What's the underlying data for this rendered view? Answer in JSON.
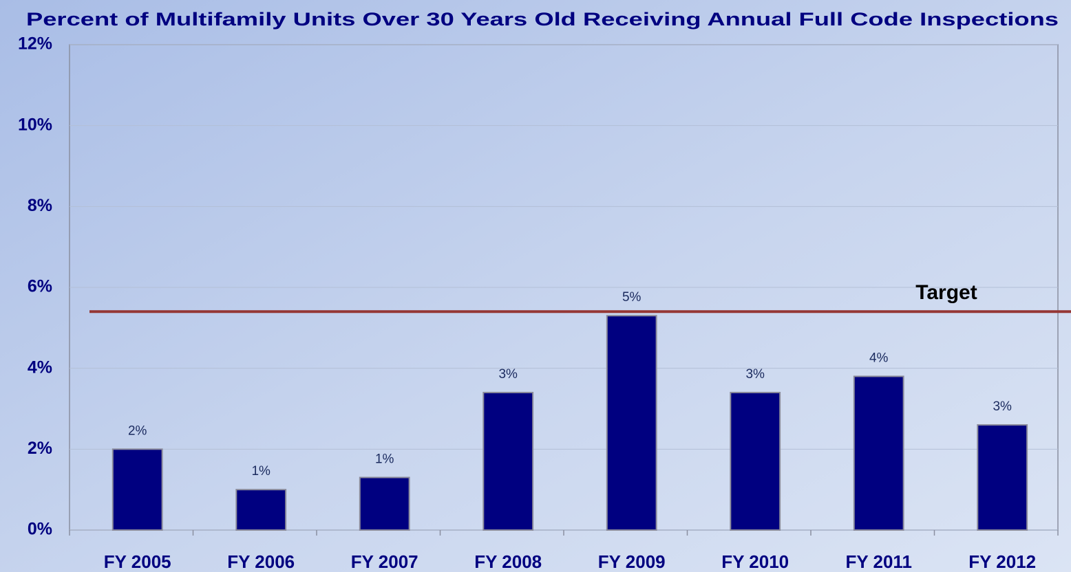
{
  "chart_data": {
    "type": "bar",
    "title": "Percent of Multifamily Units Over 30 Years Old Receiving Annual Full Code Inspections",
    "categories": [
      "FY 2005",
      "FY 2006",
      "FY 2007",
      "FY 2008",
      "FY 2009",
      "FY 2010",
      "FY 2011",
      "FY 2012"
    ],
    "values": [
      2.0,
      1.0,
      1.3,
      3.4,
      5.3,
      3.4,
      3.8,
      2.6
    ],
    "value_labels": [
      "2%",
      "1%",
      "1%",
      "3%",
      "5%",
      "3%",
      "4%",
      "3%"
    ],
    "color": "#000080",
    "ylim": [
      0,
      12
    ],
    "yticks": [
      {
        "value": 0,
        "label": "0%"
      },
      {
        "value": 2,
        "label": "2%"
      },
      {
        "value": 4,
        "label": "4%"
      },
      {
        "value": 6,
        "label": "6%"
      },
      {
        "value": 8,
        "label": "8%"
      },
      {
        "value": 10,
        "label": "10%"
      },
      {
        "value": 12,
        "label": "12%"
      }
    ],
    "grid": true,
    "target": {
      "label": "Target",
      "value": 5.4,
      "color": "#953735"
    }
  }
}
